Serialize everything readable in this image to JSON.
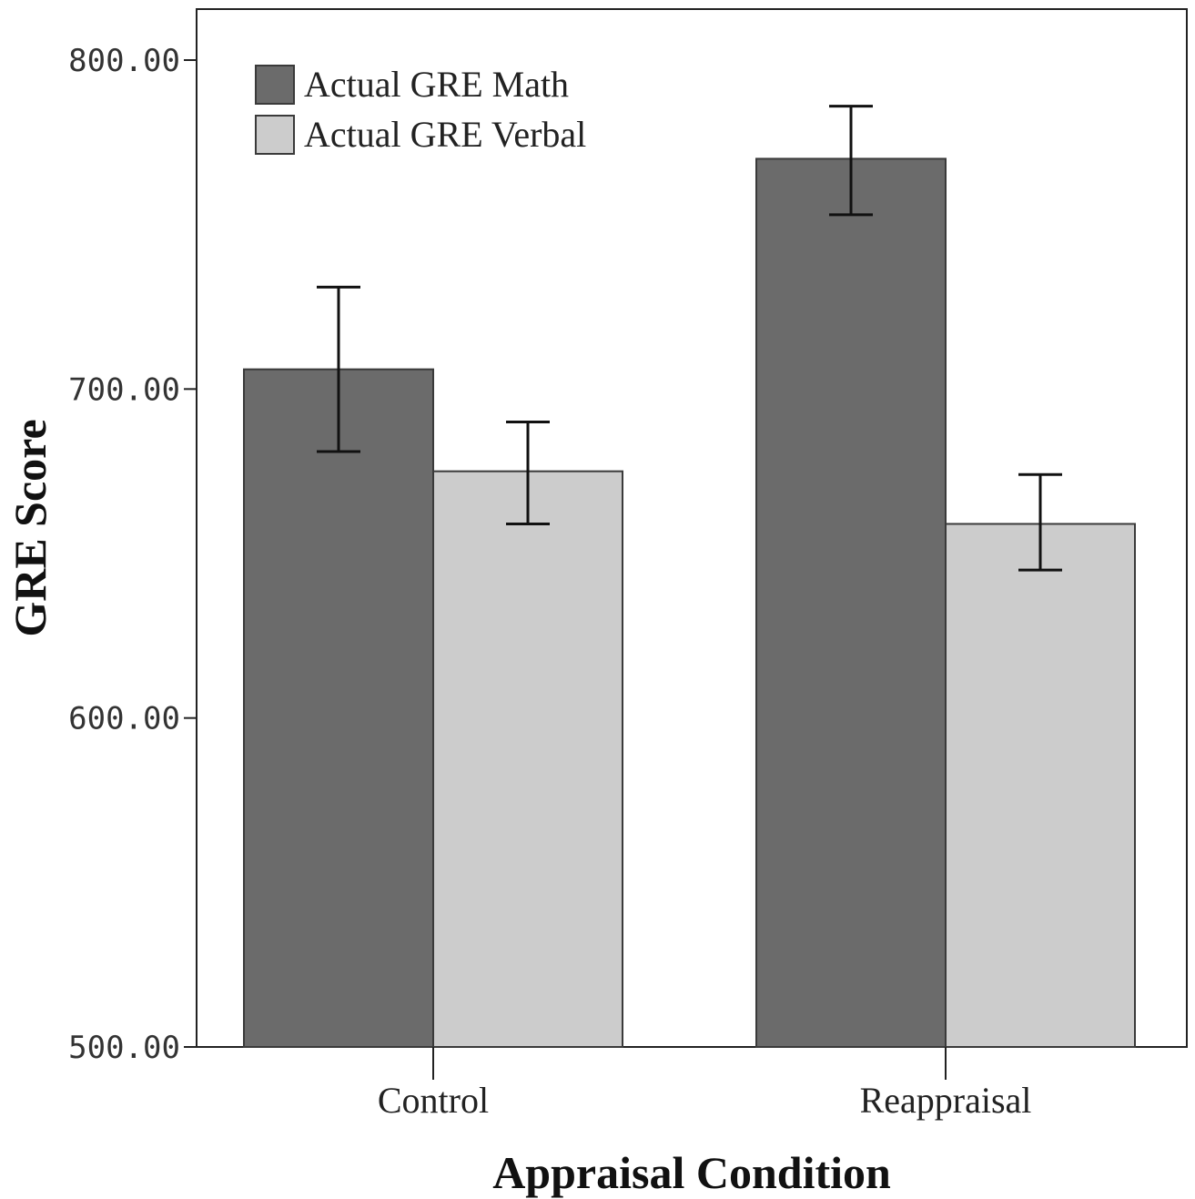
{
  "chart_data": {
    "type": "bar",
    "categories": [
      "Control",
      "Reappraisal"
    ],
    "series": [
      {
        "name": "Actual GRE Math",
        "color": "#6b6b6b",
        "values": [
          706,
          770
        ],
        "error_low": [
          681,
          753
        ],
        "error_high": [
          731,
          786
        ]
      },
      {
        "name": "Actual GRE Verbal",
        "color": "#cccccc",
        "values": [
          675,
          659
        ],
        "error_low": [
          659,
          645
        ],
        "error_high": [
          690,
          674
        ]
      }
    ],
    "xlabel": "Appraisal Condition",
    "ylabel": "GRE Score",
    "ylim": [
      500,
      815
    ],
    "yticks": [
      500,
      600,
      700,
      800
    ],
    "ytick_labels": [
      "500.00",
      "600.00",
      "700.00",
      "800.00"
    ],
    "legend_position": "top-left",
    "grid": false
  }
}
